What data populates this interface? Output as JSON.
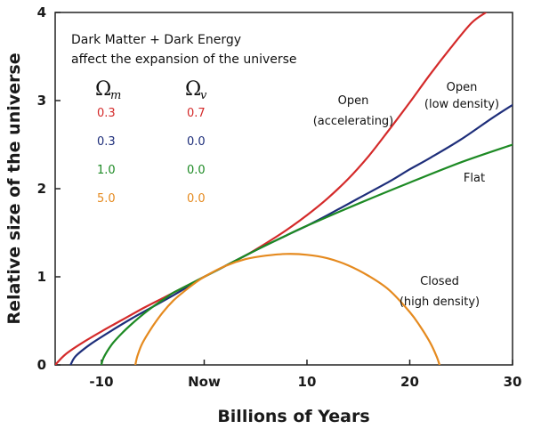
{
  "chart_data": {
    "type": "line",
    "xlabel": "Billions of Years",
    "ylabel": "Relative size of the universe",
    "xlim": [
      -14.5,
      30
    ],
    "ylim": [
      0,
      4
    ],
    "x_ticks": [
      {
        "value": -10,
        "label": "-10"
      },
      {
        "value": 0,
        "label": "Now"
      },
      {
        "value": 10,
        "label": "10"
      },
      {
        "value": 20,
        "label": "20"
      },
      {
        "value": 30,
        "label": "30"
      }
    ],
    "y_ticks": [
      {
        "value": 0,
        "label": "0"
      },
      {
        "value": 1,
        "label": "1"
      },
      {
        "value": 2,
        "label": "2"
      },
      {
        "value": 3,
        "label": "3"
      },
      {
        "value": 4,
        "label": "4"
      }
    ],
    "annotation": [
      "Dark Matter + Dark Energy",
      "affect the expansion of the universe"
    ],
    "param_headers": {
      "symbol": "Ω",
      "m": "m",
      "v": "v"
    },
    "series": [
      {
        "omega_m": "0.3",
        "omega_v": "0.7",
        "color": "#d42a2a",
        "label": [
          "Open",
          "(accelerating)"
        ],
        "x": [
          -14.5,
          -13.5,
          -12,
          -10,
          -8,
          -6,
          -4,
          -2,
          0,
          2,
          4,
          6,
          8,
          10,
          12,
          14,
          16,
          18,
          20,
          22,
          24,
          26,
          27.4
        ],
        "y": [
          0.0,
          0.12,
          0.24,
          0.38,
          0.51,
          0.64,
          0.76,
          0.88,
          1.0,
          1.12,
          1.24,
          1.38,
          1.53,
          1.7,
          1.89,
          2.11,
          2.37,
          2.67,
          2.98,
          3.3,
          3.6,
          3.88,
          4.0
        ]
      },
      {
        "omega_m": "0.3",
        "omega_v": "0.0",
        "color": "#1e2e7a",
        "label": [
          "Open",
          "(low density)"
        ],
        "x": [
          -13,
          -12.5,
          -11,
          -9,
          -7,
          -5,
          -3,
          -1,
          0,
          2,
          5,
          8,
          10,
          12,
          15,
          18,
          20,
          22,
          25,
          28,
          30
        ],
        "y": [
          0.0,
          0.1,
          0.24,
          0.39,
          0.53,
          0.66,
          0.79,
          0.93,
          1.0,
          1.12,
          1.3,
          1.47,
          1.58,
          1.7,
          1.89,
          2.08,
          2.22,
          2.35,
          2.56,
          2.8,
          2.95
        ]
      },
      {
        "omega_m": "1.0",
        "omega_v": "0.0",
        "color": "#1d8a24",
        "label": [
          "Flat"
        ],
        "x": [
          -10,
          -9.8,
          -9,
          -8,
          -7,
          -6,
          -5,
          -4,
          -3,
          -2,
          0,
          2,
          5,
          8,
          10,
          15,
          20,
          25,
          30
        ],
        "y": [
          0.0,
          0.08,
          0.23,
          0.36,
          0.47,
          0.57,
          0.66,
          0.74,
          0.82,
          0.88,
          1.0,
          1.12,
          1.3,
          1.47,
          1.58,
          1.83,
          2.07,
          2.3,
          2.5
        ]
      },
      {
        "omega_m": "5.0",
        "omega_v": "0.0",
        "color": "#e58a1f",
        "label": [
          "Closed",
          "(high density)"
        ],
        "x": [
          -6.7,
          -6.5,
          -6,
          -5,
          -4,
          -3,
          -2,
          -1,
          0,
          2,
          4,
          6,
          8,
          10,
          12,
          14,
          16,
          18,
          20,
          21,
          22,
          22.6,
          22.9
        ],
        "y": [
          0.0,
          0.1,
          0.25,
          0.44,
          0.6,
          0.73,
          0.83,
          0.92,
          1.0,
          1.12,
          1.2,
          1.24,
          1.26,
          1.25,
          1.21,
          1.13,
          1.01,
          0.85,
          0.6,
          0.44,
          0.25,
          0.1,
          0.0
        ]
      }
    ]
  }
}
